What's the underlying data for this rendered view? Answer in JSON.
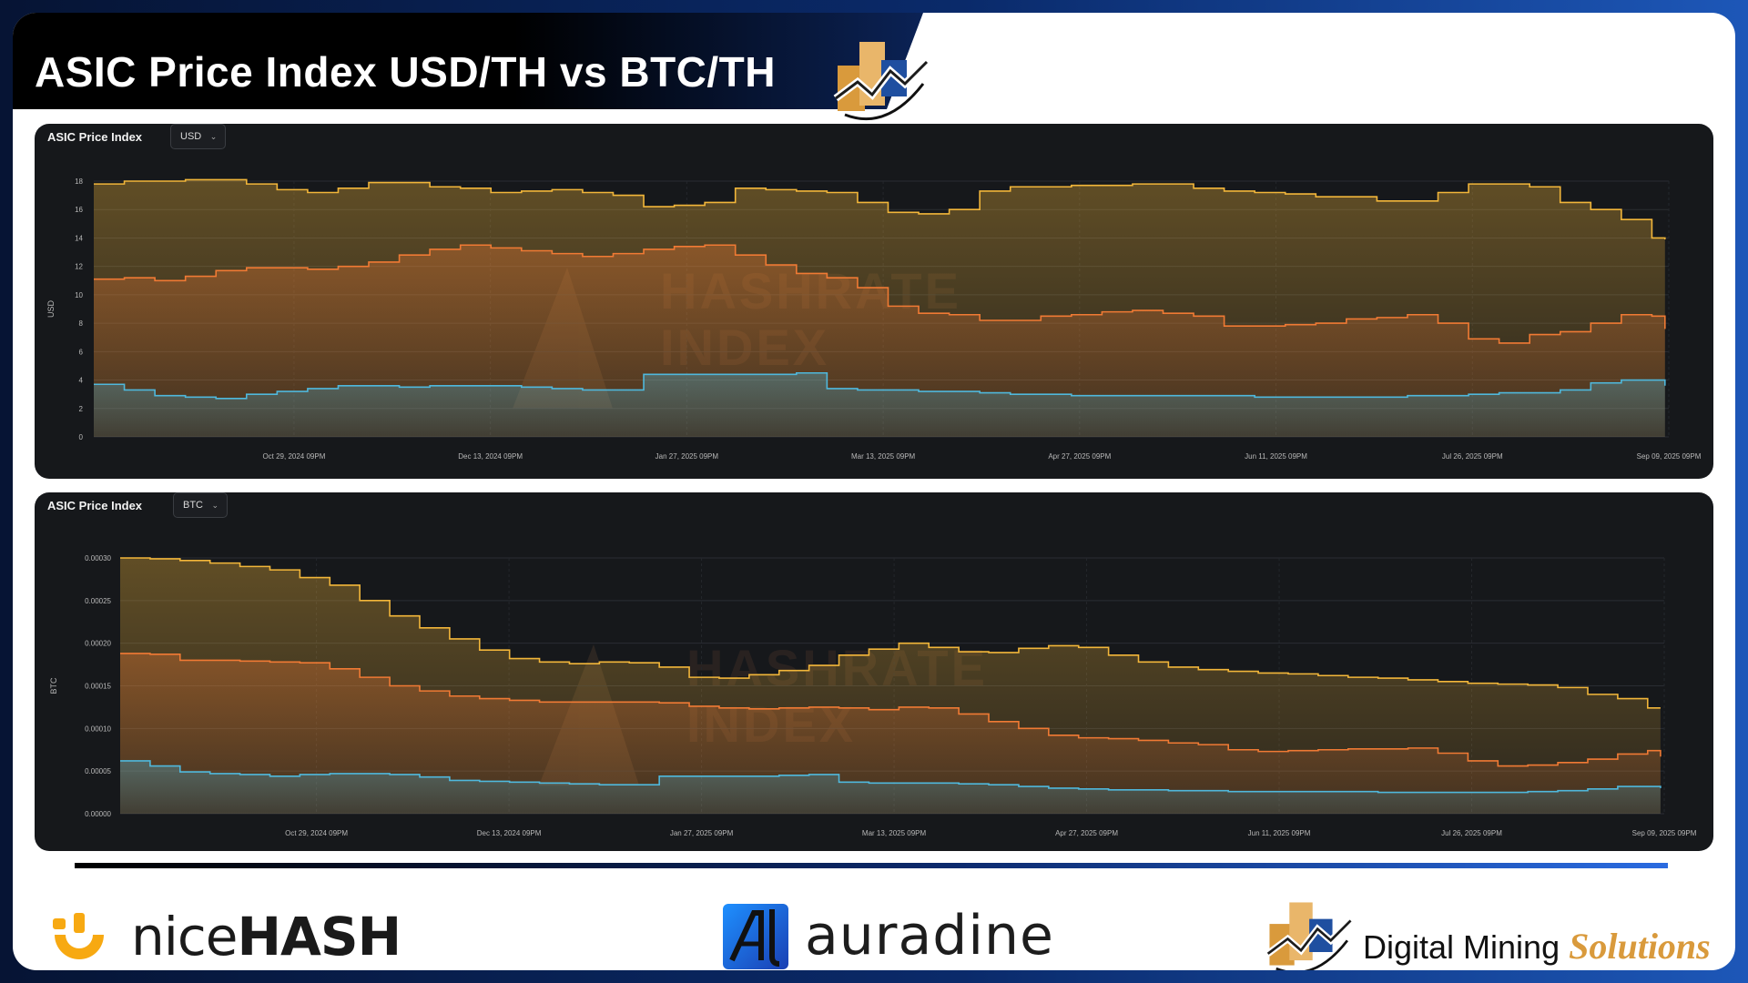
{
  "header": {
    "title": "ASIC Price Index USD/TH vs BTC/TH"
  },
  "colors": {
    "yellow": "#f2b63a",
    "orange": "#f07a34",
    "blue": "#4fb8dc",
    "panel_bg": "#16181b"
  },
  "watermark": [
    "HASHRATE",
    "INDEX"
  ],
  "panels": [
    {
      "title": "ASIC Price Index",
      "currency": "USD",
      "ylabel": "USD"
    },
    {
      "title": "ASIC Price Index",
      "currency": "BTC",
      "ylabel": "BTC"
    }
  ],
  "chart_data": [
    {
      "type": "area",
      "title": "ASIC Price Index",
      "xlabel": "",
      "ylabel": "USD",
      "ylim": [
        0,
        18
      ],
      "y_ticks": [
        "0",
        "2",
        "4",
        "6",
        "8",
        "10",
        "12",
        "14",
        "16",
        "18"
      ],
      "x_tick_labels": [
        "Oct 29, 2024 09PM",
        "Dec 13, 2024 09PM",
        "Jan 27, 2025 09PM",
        "Mar 13, 2025 09PM",
        "Apr 27, 2025 09PM",
        "Jun 11, 2025 09PM",
        "Jul 26, 2025 09PM",
        "Sep 09, 2025 09PM"
      ],
      "x": [
        "Sep 14, 2024",
        "Sep 21, 2024",
        "Sep 28, 2024",
        "Oct 05, 2024",
        "Oct 12, 2024",
        "Oct 19, 2024",
        "Oct 26, 2024",
        "Nov 02, 2024",
        "Nov 09, 2024",
        "Nov 16, 2024",
        "Nov 23, 2024",
        "Nov 30, 2024",
        "Dec 07, 2024",
        "Dec 14, 2024",
        "Dec 21, 2024",
        "Dec 28, 2024",
        "Jan 04, 2025",
        "Jan 11, 2025",
        "Jan 18, 2025",
        "Jan 25, 2025",
        "Feb 01, 2025",
        "Feb 08, 2025",
        "Feb 15, 2025",
        "Feb 22, 2025",
        "Mar 01, 2025",
        "Mar 08, 2025",
        "Mar 15, 2025",
        "Mar 22, 2025",
        "Mar 29, 2025",
        "Apr 05, 2025",
        "Apr 12, 2025",
        "Apr 19, 2025",
        "Apr 26, 2025",
        "May 03, 2025",
        "May 10, 2025",
        "May 17, 2025",
        "May 24, 2025",
        "May 31, 2025",
        "Jun 07, 2025",
        "Jun 14, 2025",
        "Jun 21, 2025",
        "Jun 28, 2025",
        "Jul 05, 2025",
        "Jul 12, 2025",
        "Jul 19, 2025",
        "Jul 26, 2025",
        "Aug 02, 2025",
        "Aug 09, 2025",
        "Aug 16, 2025",
        "Aug 23, 2025",
        "Aug 30, 2025",
        "Sep 06, 2025",
        "Sep 09, 2025"
      ],
      "series": [
        {
          "values": [
            17.8,
            18.0,
            18.0,
            18.1,
            18.1,
            17.8,
            17.4,
            17.2,
            17.5,
            17.9,
            17.9,
            17.6,
            17.5,
            17.2,
            17.3,
            17.4,
            17.2,
            17.0,
            16.2,
            16.3,
            16.5,
            17.5,
            17.4,
            17.3,
            17.2,
            16.5,
            15.8,
            15.7,
            16.0,
            17.3,
            17.6,
            17.6,
            17.7,
            17.7,
            17.8,
            17.8,
            17.5,
            17.3,
            17.2,
            17.1,
            16.9,
            16.9,
            16.6,
            16.6,
            17.2,
            17.8,
            17.8,
            17.6,
            16.5,
            16.0,
            15.3,
            14.0,
            13.9
          ]
        },
        {
          "values": [
            11.1,
            11.2,
            11.0,
            11.3,
            11.7,
            11.9,
            11.9,
            11.8,
            12.0,
            12.3,
            12.8,
            13.2,
            13.5,
            13.3,
            13.1,
            12.9,
            12.7,
            12.9,
            13.2,
            13.4,
            13.5,
            12.8,
            12.1,
            11.5,
            11.2,
            10.5,
            9.2,
            8.7,
            8.6,
            8.2,
            8.2,
            8.5,
            8.6,
            8.8,
            8.9,
            8.7,
            8.5,
            7.8,
            7.8,
            7.9,
            8.0,
            8.3,
            8.4,
            8.6,
            8.0,
            6.9,
            6.6,
            7.2,
            7.4,
            8.0,
            8.6,
            8.5,
            7.6
          ]
        },
        {
          "values": [
            3.7,
            3.3,
            2.9,
            2.8,
            2.7,
            3.0,
            3.2,
            3.4,
            3.6,
            3.6,
            3.5,
            3.6,
            3.6,
            3.6,
            3.5,
            3.4,
            3.3,
            3.3,
            4.4,
            4.4,
            4.4,
            4.4,
            4.4,
            4.5,
            3.4,
            3.3,
            3.3,
            3.2,
            3.2,
            3.1,
            3.0,
            3.0,
            2.9,
            2.9,
            2.9,
            2.9,
            2.9,
            2.9,
            2.8,
            2.8,
            2.8,
            2.8,
            2.8,
            2.9,
            2.9,
            3.0,
            3.1,
            3.1,
            3.3,
            3.8,
            4.0,
            4.0,
            3.6
          ]
        }
      ]
    },
    {
      "type": "area",
      "title": "ASIC Price Index",
      "xlabel": "",
      "ylabel": "BTC",
      "ylim": [
        0,
        0.0003
      ],
      "y_ticks": [
        "0.00000",
        "0.00005",
        "0.00010",
        "0.00015",
        "0.00020",
        "0.00025",
        "0.00030"
      ],
      "x_tick_labels": [
        "Oct 29, 2024 09PM",
        "Dec 13, 2024 09PM",
        "Jan 27, 2025 09PM",
        "Mar 13, 2025 09PM",
        "Apr 27, 2025 09PM",
        "Jun 11, 2025 09PM",
        "Jul 26, 2025 09PM",
        "Sep 09, 2025 09PM"
      ],
      "x": [
        "Sep 14, 2024",
        "Sep 21, 2024",
        "Sep 28, 2024",
        "Oct 05, 2024",
        "Oct 12, 2024",
        "Oct 19, 2024",
        "Oct 26, 2024",
        "Nov 02, 2024",
        "Nov 09, 2024",
        "Nov 16, 2024",
        "Nov 23, 2024",
        "Nov 30, 2024",
        "Dec 07, 2024",
        "Dec 14, 2024",
        "Dec 21, 2024",
        "Dec 28, 2024",
        "Jan 04, 2025",
        "Jan 11, 2025",
        "Jan 18, 2025",
        "Jan 25, 2025",
        "Feb 01, 2025",
        "Feb 08, 2025",
        "Feb 15, 2025",
        "Feb 22, 2025",
        "Mar 01, 2025",
        "Mar 08, 2025",
        "Mar 15, 2025",
        "Mar 22, 2025",
        "Mar 29, 2025",
        "Apr 05, 2025",
        "Apr 12, 2025",
        "Apr 19, 2025",
        "Apr 26, 2025",
        "May 03, 2025",
        "May 10, 2025",
        "May 17, 2025",
        "May 24, 2025",
        "May 31, 2025",
        "Jun 07, 2025",
        "Jun 14, 2025",
        "Jun 21, 2025",
        "Jun 28, 2025",
        "Jul 05, 2025",
        "Jul 12, 2025",
        "Jul 19, 2025",
        "Jul 26, 2025",
        "Aug 02, 2025",
        "Aug 09, 2025",
        "Aug 16, 2025",
        "Aug 23, 2025",
        "Aug 30, 2025",
        "Sep 06, 2025",
        "Sep 09, 2025"
      ],
      "series": [
        {
          "values": [
            0.0003,
            0.000299,
            0.000297,
            0.000294,
            0.00029,
            0.000286,
            0.000277,
            0.000268,
            0.00025,
            0.000232,
            0.000218,
            0.000205,
            0.000192,
            0.000182,
            0.000178,
            0.000176,
            0.000178,
            0.000177,
            0.000172,
            0.00016,
            0.000159,
            0.000163,
            0.000168,
            0.000174,
            0.000186,
            0.000193,
            0.0002,
            0.000195,
            0.00019,
            0.000189,
            0.000194,
            0.000197,
            0.000195,
            0.000186,
            0.000178,
            0.000172,
            0.000169,
            0.000167,
            0.000165,
            0.000164,
            0.000162,
            0.00016,
            0.000159,
            0.000157,
            0.000155,
            0.000153,
            0.000152,
            0.000151,
            0.000148,
            0.00014,
            0.000135,
            0.000124,
            0.000124
          ]
        },
        {
          "values": [
            0.000188,
            0.000187,
            0.00018,
            0.00018,
            0.000179,
            0.000178,
            0.000177,
            0.00017,
            0.00016,
            0.00015,
            0.000144,
            0.000138,
            0.000135,
            0.000133,
            0.000131,
            0.000131,
            0.000131,
            0.000131,
            0.00013,
            0.000126,
            0.000124,
            0.000123,
            0.000124,
            0.000125,
            0.000124,
            0.000122,
            0.000125,
            0.000124,
            0.000117,
            0.000108,
            0.0001,
            9.2e-05,
            8.9e-05,
            8.8e-05,
            8.6e-05,
            8.3e-05,
            8.1e-05,
            7.5e-05,
            7.3e-05,
            7.4e-05,
            7.5e-05,
            7.6e-05,
            7.6e-05,
            7.7e-05,
            7.1e-05,
            6.2e-05,
            5.6e-05,
            5.7e-05,
            6e-05,
            6.4e-05,
            7e-05,
            7.4e-05,
            6.7e-05
          ]
        },
        {
          "values": [
            6.2e-05,
            5.6e-05,
            4.9e-05,
            4.7e-05,
            4.6e-05,
            4.4e-05,
            4.6e-05,
            4.7e-05,
            4.7e-05,
            4.6e-05,
            4.3e-05,
            3.9e-05,
            3.8e-05,
            3.7e-05,
            3.6e-05,
            3.5e-05,
            3.4e-05,
            3.4e-05,
            4.4e-05,
            4.4e-05,
            4.4e-05,
            4.4e-05,
            4.5e-05,
            4.6e-05,
            3.7e-05,
            3.6e-05,
            3.6e-05,
            3.6e-05,
            3.5e-05,
            3.4e-05,
            3.2e-05,
            3e-05,
            2.9e-05,
            2.8e-05,
            2.8e-05,
            2.7e-05,
            2.7e-05,
            2.6e-05,
            2.6e-05,
            2.6e-05,
            2.6e-05,
            2.6e-05,
            2.5e-05,
            2.5e-05,
            2.5e-05,
            2.5e-05,
            2.5e-05,
            2.6e-05,
            2.7e-05,
            2.9e-05,
            3.2e-05,
            3.2e-05,
            3e-05
          ]
        }
      ]
    }
  ],
  "footer": {
    "nicehash": {
      "light": "nice",
      "bold": "HASH"
    },
    "auradine": "auradine",
    "dms": {
      "plain": "Digital Mining ",
      "italic": "Solutions"
    }
  }
}
